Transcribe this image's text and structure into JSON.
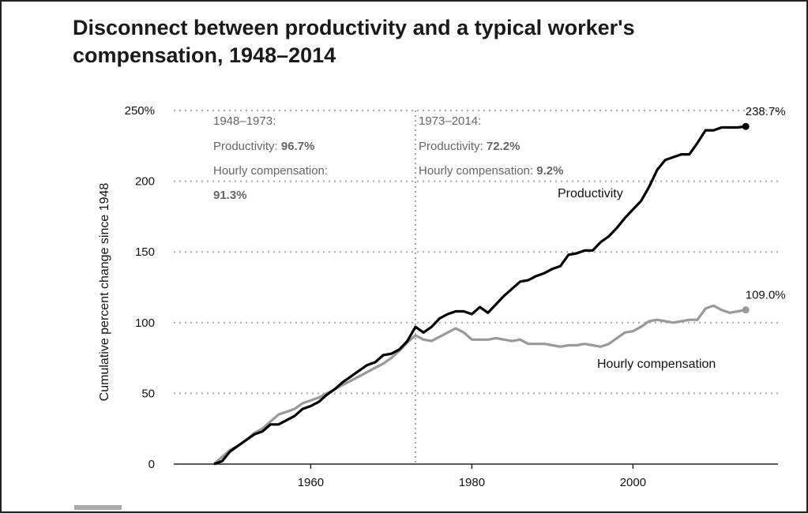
{
  "title": "Disconnect between productivity and a typical worker's compensation, 1948–2014",
  "chart_data": {
    "type": "line",
    "title": "Disconnect between productivity and a typical worker's compensation, 1948–2014",
    "ylabel": "Cumulative percent change since 1948",
    "xlabel": "",
    "xlim": [
      1943,
      2018
    ],
    "ylim": [
      0,
      250
    ],
    "x_ticks": [
      1960,
      1980,
      2000
    ],
    "y_ticks": [
      {
        "value": 0,
        "label": "0"
      },
      {
        "value": 50,
        "label": "50"
      },
      {
        "value": 100,
        "label": "100"
      },
      {
        "value": 150,
        "label": "150"
      },
      {
        "value": 200,
        "label": "200"
      },
      {
        "value": 250,
        "label": "250%"
      }
    ],
    "grid": "horizontal dotted",
    "reference_line_x": 1973,
    "series": [
      {
        "name": "Productivity",
        "color": "#000000",
        "end_label": "238.7%",
        "x": [
          1948,
          1949,
          1950,
          1951,
          1952,
          1953,
          1954,
          1955,
          1956,
          1957,
          1958,
          1959,
          1960,
          1961,
          1962,
          1963,
          1964,
          1965,
          1966,
          1967,
          1968,
          1969,
          1970,
          1971,
          1972,
          1973,
          1974,
          1975,
          1976,
          1977,
          1978,
          1979,
          1980,
          1981,
          1982,
          1983,
          1984,
          1985,
          1986,
          1987,
          1988,
          1989,
          1990,
          1991,
          1992,
          1993,
          1994,
          1995,
          1996,
          1997,
          1998,
          1999,
          2000,
          2001,
          2002,
          2003,
          2004,
          2005,
          2006,
          2007,
          2008,
          2009,
          2010,
          2011,
          2012,
          2013,
          2014
        ],
        "values": [
          0,
          2,
          9,
          13,
          17,
          21,
          23,
          28,
          28,
          31,
          34,
          39,
          41,
          44,
          49,
          53,
          58,
          62,
          66,
          70,
          72,
          77,
          78,
          81,
          87,
          97,
          93,
          97,
          103,
          106,
          108,
          108,
          106,
          111,
          107,
          113,
          119,
          124,
          129,
          130,
          133,
          135,
          138,
          140,
          148,
          149,
          151,
          151,
          157,
          161,
          167,
          174,
          180,
          186,
          196,
          208,
          215,
          217,
          219,
          219,
          227,
          236,
          236,
          238,
          238,
          238,
          238.7
        ]
      },
      {
        "name": "Hourly compensation",
        "color": "#999999",
        "end_label": "109.0%",
        "x": [
          1948,
          1949,
          1950,
          1951,
          1952,
          1953,
          1954,
          1955,
          1956,
          1957,
          1958,
          1959,
          1960,
          1961,
          1962,
          1963,
          1964,
          1965,
          1966,
          1967,
          1968,
          1969,
          1970,
          1971,
          1972,
          1973,
          1974,
          1975,
          1976,
          1977,
          1978,
          1979,
          1980,
          1981,
          1982,
          1983,
          1984,
          1985,
          1986,
          1987,
          1988,
          1989,
          1990,
          1991,
          1992,
          1993,
          1994,
          1995,
          1996,
          1997,
          1998,
          1999,
          2000,
          2001,
          2002,
          2003,
          2004,
          2005,
          2006,
          2007,
          2008,
          2009,
          2010,
          2011,
          2012,
          2013,
          2014
        ],
        "values": [
          0,
          5,
          10,
          13,
          17,
          22,
          25,
          30,
          35,
          37,
          39,
          43,
          45,
          47,
          50,
          53,
          56,
          59,
          62,
          65,
          68,
          71,
          75,
          80,
          86,
          91,
          88,
          87,
          90,
          93,
          96,
          93,
          88,
          88,
          88,
          89,
          88,
          87,
          88,
          85,
          85,
          85,
          84,
          83,
          84,
          84,
          85,
          84,
          83,
          85,
          89,
          93,
          94,
          97,
          101,
          102,
          101,
          100,
          101,
          102,
          102,
          110,
          112,
          109,
          107,
          108,
          109
        ]
      }
    ],
    "annotations": [
      {
        "heading": "1948–1973:",
        "lines": [
          {
            "label": "Productivity: ",
            "value": "96.7%"
          },
          {
            "label": "Hourly compensation:",
            "value": ""
          },
          {
            "label": "",
            "value": "91.3%"
          }
        ]
      },
      {
        "heading": "1973–2014:",
        "lines": [
          {
            "label": "Productivity: ",
            "value": "72.2%"
          },
          {
            "label": "Hourly compensation: ",
            "value": "9.2%"
          }
        ]
      }
    ]
  }
}
